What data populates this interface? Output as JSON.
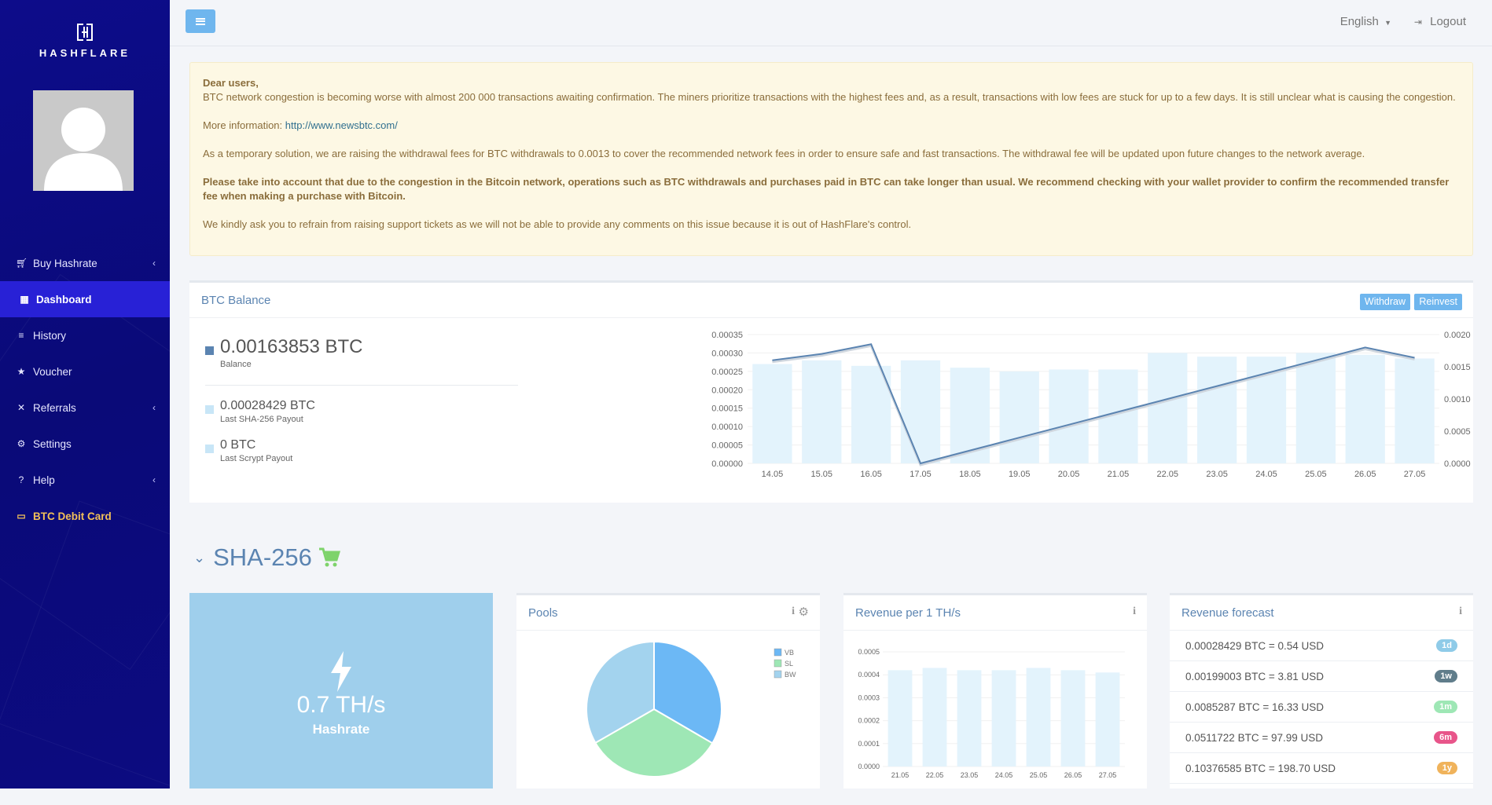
{
  "brand": {
    "logo_text": "HASHFLARE"
  },
  "sidebar": {
    "items": [
      {
        "label": "Buy Hashrate",
        "icon": "cart-icon",
        "has_submenu": true
      },
      {
        "label": "Dashboard",
        "icon": "grid-icon",
        "active": true
      },
      {
        "label": "History",
        "icon": "list-icon"
      },
      {
        "label": "Voucher",
        "icon": "star-icon"
      },
      {
        "label": "Referrals",
        "icon": "network-icon",
        "has_submenu": true
      },
      {
        "label": "Settings",
        "icon": "gears-icon"
      },
      {
        "label": "Help",
        "icon": "question-icon",
        "has_submenu": true
      },
      {
        "label": "BTC Debit Card",
        "icon": "credit-card-icon",
        "highlight_color": "#f2c058"
      }
    ]
  },
  "topbar": {
    "language": "English",
    "logout": "Logout"
  },
  "alert": {
    "greeting": "Dear users,",
    "p1": "BTC network congestion is becoming worse with almost 200 000 transactions awaiting confirmation. The miners prioritize transactions with the highest fees and, as a result, transactions with low fees are stuck for up to a few days. It is still unclear what is causing the congestion.",
    "more_info_label": "More information:",
    "more_info_link": "http://www.newsbtc.com/",
    "p2": "As a temporary solution, we are raising the withdrawal fees for BTC withdrawals to 0.0013 to cover the recommended network fees in order to ensure safe and fast transactions. The withdrawal fee will be updated upon future changes to the network average.",
    "p3": "Please take into account that due to the congestion in the Bitcoin network, operations such as BTC withdrawals and purchases paid in BTC can take longer than usual. We recommend checking with your wallet provider to confirm the recommended transfer fee when making a purchase with Bitcoin.",
    "p4": "We kindly ask you to refrain from raising support tickets as we will not be able to provide any comments on this issue because it is out of HashFlare's control."
  },
  "btc_balance": {
    "title": "BTC Balance",
    "withdraw": "Withdraw",
    "reinvest": "Reinvest",
    "balance_value": "0.00163853 BTC",
    "balance_label": "Balance",
    "sha_payout_value": "0.00028429 BTC",
    "sha_payout_label": "Last SHA-256 Payout",
    "scrypt_payout_value": "0 BTC",
    "scrypt_payout_label": "Last Scrypt Payout"
  },
  "sha256": {
    "title": "SHA-256",
    "hashrate_value": "0.7 TH/s",
    "hashrate_label": "Hashrate",
    "pools_title": "Pools",
    "revenue_title": "Revenue per 1 TH/s",
    "forecast_title": "Revenue forecast",
    "forecast": [
      {
        "text": "0.00028429 BTC = 0.54 USD",
        "badge": "1d",
        "color": "#8fcbe8"
      },
      {
        "text": "0.00199003 BTC = 3.81 USD",
        "badge": "1w",
        "color": "#607d8b"
      },
      {
        "text": "0.0085287 BTC = 16.33 USD",
        "badge": "1m",
        "color": "#9ee7b5"
      },
      {
        "text": "0.0511722 BTC = 97.99 USD",
        "badge": "6m",
        "color": "#e8558a"
      },
      {
        "text": "0.10376585 BTC = 198.70 USD",
        "badge": "1y",
        "color": "#f0b35b"
      }
    ]
  },
  "chart_data": [
    {
      "type": "bar",
      "categories": [
        "14.05",
        "15.05",
        "16.05",
        "17.05",
        "18.05",
        "19.05",
        "20.05",
        "21.05",
        "22.05",
        "23.05",
        "24.05",
        "25.05",
        "26.05",
        "27.05"
      ],
      "series": [
        {
          "axis": "left",
          "type": "bar",
          "values": [
            0.00027,
            0.00028,
            0.000265,
            0.00028,
            0.00026,
            0.00025,
            0.000255,
            0.000255,
            0.0003,
            0.00029,
            0.00029,
            0.0003,
            0.000295,
            0.000285
          ]
        },
        {
          "axis": "right",
          "type": "line",
          "values": [
            0.0016,
            0.0017,
            0.00185,
            0.0,
            0.0002,
            0.0004,
            0.0006,
            0.0008,
            0.001,
            0.0012,
            0.0014,
            0.0016,
            0.0018,
            0.00164
          ]
        }
      ],
      "y_left_ticks": [
        "0.00035",
        "0.00030",
        "0.00025",
        "0.00020",
        "0.00015",
        "0.00010",
        "0.00005",
        "0.00000"
      ],
      "y_right_ticks": [
        "0.0020",
        "0.0015",
        "0.0010",
        "0.0005",
        "0.0000"
      ],
      "ylim_left": [
        0,
        0.00035
      ],
      "ylim_right": [
        0,
        0.002
      ],
      "colors": {
        "bar": "#e3f3fc",
        "line": "#5b84b1"
      }
    },
    {
      "type": "pie",
      "categories": [
        "VB",
        "SL",
        "BW"
      ],
      "values": [
        33.4,
        33.3,
        33.3
      ],
      "colors": [
        "#6cb8f5",
        "#9ee7b5",
        "#a3d3ee"
      ]
    },
    {
      "type": "bar",
      "categories": [
        "21.05",
        "22.05",
        "23.05",
        "24.05",
        "25.05",
        "26.05",
        "27.05"
      ],
      "values": [
        0.00042,
        0.00043,
        0.00042,
        0.00042,
        0.00043,
        0.00042,
        0.00041
      ],
      "y_ticks": [
        "0.0005",
        "0.0004",
        "0.0003",
        "0.0002",
        "0.0001",
        "0.0000"
      ],
      "ylim": [
        0,
        0.0005
      ],
      "colors": {
        "bar": "#e3f3fc"
      }
    }
  ]
}
